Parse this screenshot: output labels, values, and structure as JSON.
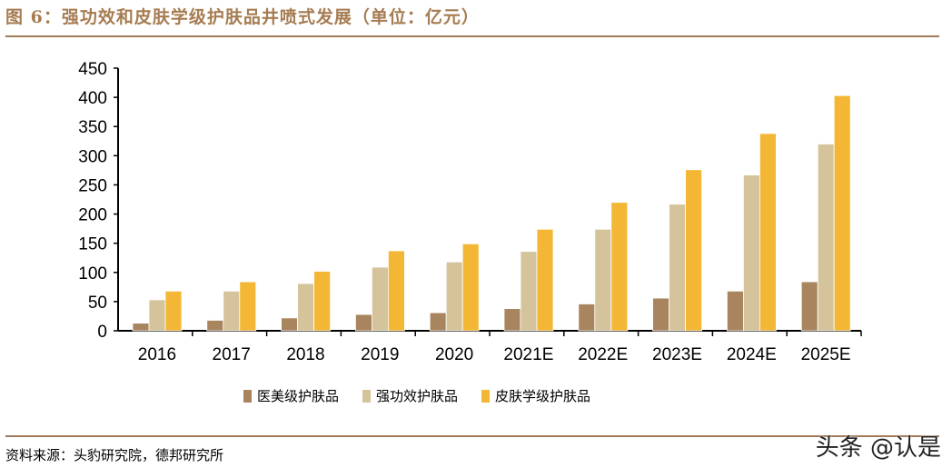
{
  "title": "图 6：强功效和皮肤学级护肤品井喷式发展（单位：亿元）",
  "source": "资料来源：头豹研究院，德邦研究所",
  "watermark": "头条 @认是",
  "chart_data": {
    "type": "bar",
    "title": "",
    "xlabel": "",
    "ylabel": "",
    "ylim": [
      0,
      450
    ],
    "yticks": [
      0,
      50,
      100,
      150,
      200,
      250,
      300,
      350,
      400,
      450
    ],
    "grid": false,
    "legend_position": "bottom",
    "categories": [
      "2016",
      "2017",
      "2018",
      "2019",
      "2020",
      "2021E",
      "2022E",
      "2023E",
      "2024E",
      "2025E"
    ],
    "series": [
      {
        "name": "医美级护肤品",
        "color": "#a8855e",
        "values": [
          13,
          18,
          22,
          28,
          31,
          38,
          46,
          56,
          68,
          84
        ]
      },
      {
        "name": "强功效护肤品",
        "color": "#d5c39b",
        "values": [
          53,
          68,
          81,
          109,
          118,
          136,
          174,
          217,
          267,
          320
        ]
      },
      {
        "name": "皮肤学级护肤品",
        "color": "#f3b735",
        "values": [
          68,
          84,
          102,
          137,
          149,
          174,
          220,
          276,
          338,
          403
        ]
      }
    ]
  }
}
